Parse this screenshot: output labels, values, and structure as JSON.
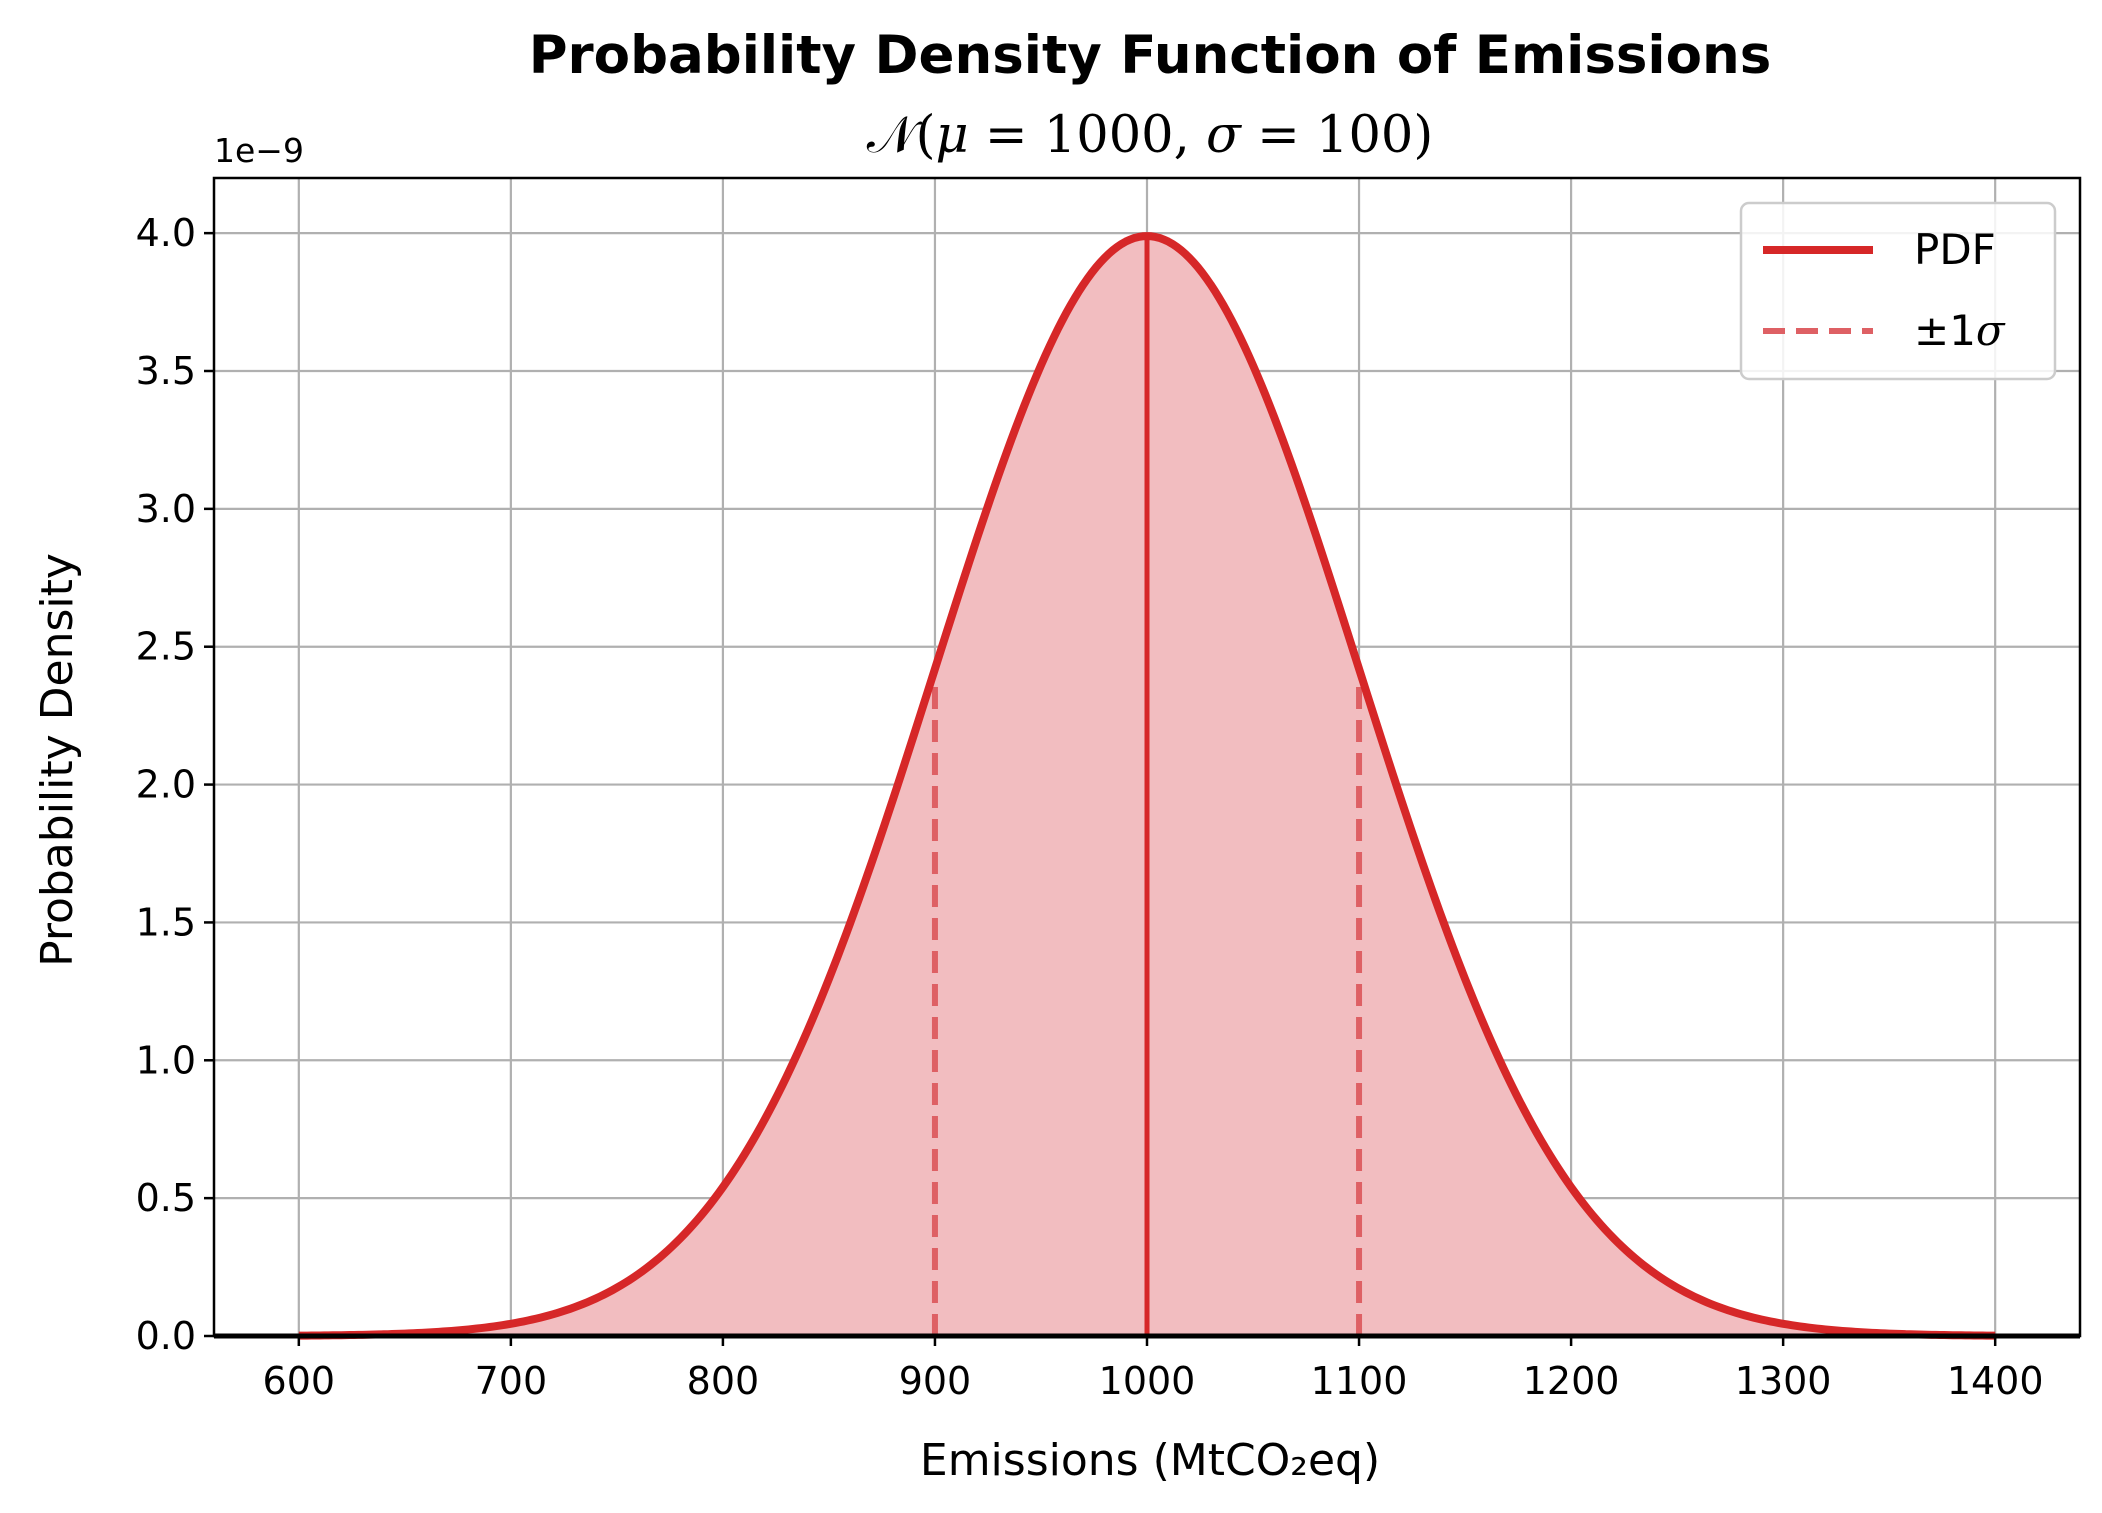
{
  "chart_data": {
    "type": "line",
    "title": "Probability Density Function of Emissions",
    "subtitle": {
      "script_n": "𝒩",
      "open": "(",
      "mu": "μ",
      "eq1": " = 1000, ",
      "sigma": "σ",
      "eq2": " = 100)"
    },
    "xlabel": "Emissions (MtCO₂eq)",
    "ylabel": "Probability Density",
    "y_offset_text": "1e−9",
    "xlim": [
      560,
      1440
    ],
    "ylim": [
      0,
      4.2
    ],
    "y_scale_multiplier": 1e-09,
    "x_ticks": [
      600,
      700,
      800,
      900,
      1000,
      1100,
      1200,
      1300,
      1400
    ],
    "x_tick_labels": [
      "600",
      "700",
      "800",
      "900",
      "1000",
      "1100",
      "1200",
      "1300",
      "1400"
    ],
    "y_ticks": [
      0,
      0.5,
      1.0,
      1.5,
      2.0,
      2.5,
      3.0,
      3.5,
      4.0
    ],
    "y_tick_labels": [
      "0.0",
      "0.5",
      "1.0",
      "1.5",
      "2.0",
      "2.5",
      "3.0",
      "3.5",
      "4.0"
    ],
    "grid": true,
    "legend_position": "top-right",
    "series": [
      {
        "name": "PDF",
        "style": "solid",
        "distribution": "normal",
        "mu": 1000,
        "sigma": 100,
        "x_range": [
          600,
          1400
        ],
        "x": [
          600,
          650,
          700,
          750,
          800,
          850,
          900,
          950,
          1000,
          1050,
          1100,
          1150,
          1200,
          1250,
          1300,
          1350,
          1400
        ],
        "y": [
          0.0013,
          0.0087,
          0.0443,
          0.1753,
          0.5399,
          1.2952,
          2.4197,
          3.5207,
          3.9894,
          3.5207,
          2.4197,
          1.2952,
          0.5399,
          0.1753,
          0.0443,
          0.0087,
          0.0013
        ],
        "fill_under": true
      },
      {
        "name": "±1σ",
        "legend_plain": "±1",
        "legend_italic": "σ",
        "style": "dashed",
        "x_values": [
          900,
          1100
        ],
        "y_top": 2.36
      }
    ],
    "mean_line": {
      "x": 1000,
      "y_top": 3.99,
      "style": "solid"
    },
    "colors": {
      "line": "#d62728",
      "fill": "#f2bdc0",
      "dashed": "#de6064",
      "grid": "#b0b0b0",
      "axis": "#000000"
    }
  }
}
